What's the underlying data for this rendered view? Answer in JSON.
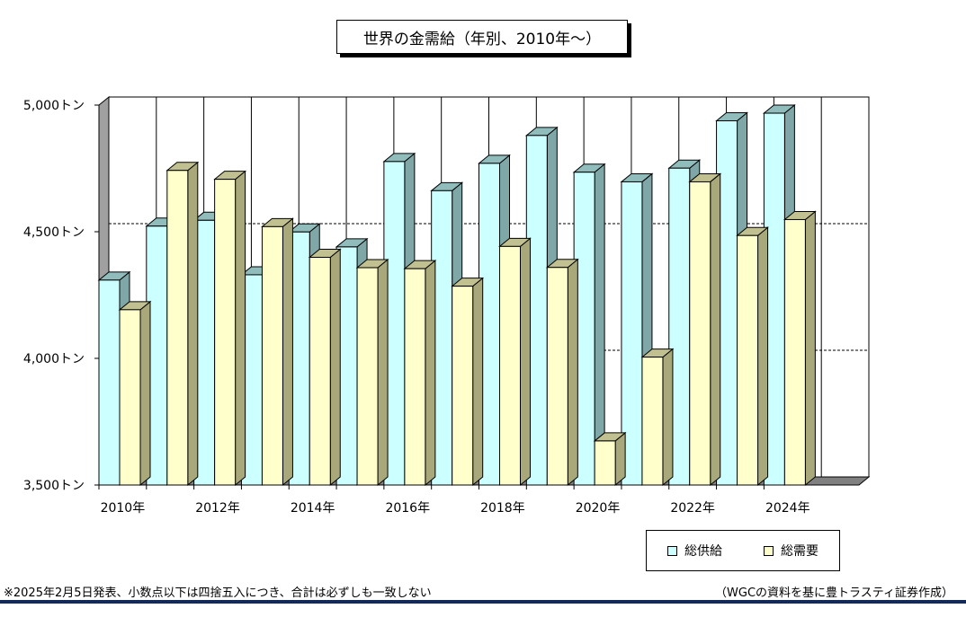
{
  "chart_data": {
    "type": "bar",
    "title": "世界の金需給（年別、2010年～）",
    "categories": [
      "2010年",
      "2011年",
      "2012年",
      "2013年",
      "2014年",
      "2015年",
      "2016年",
      "2017年",
      "2018年",
      "2019年",
      "2020年",
      "2021年",
      "2022年",
      "2023年",
      "2024年"
    ],
    "x_tick_labels": [
      "2010年",
      "",
      "2012年",
      "",
      "2014年",
      "",
      "2016年",
      "",
      "2018年",
      "",
      "2020年",
      "",
      "2022年",
      "",
      "2024年"
    ],
    "series": [
      {
        "name": "総供給",
        "color": "#ccffff",
        "values": [
          4309,
          4522,
          4545,
          4330,
          4499,
          4440,
          4777,
          4662,
          4770,
          4880,
          4735,
          4697,
          4751,
          4938,
          4968
        ]
      },
      {
        "name": "総需要",
        "color": "#ffffcc",
        "values": [
          4192,
          4742,
          4707,
          4520,
          4399,
          4358,
          4354,
          4285,
          4442,
          4359,
          3674,
          4005,
          4697,
          4485,
          4548
        ]
      }
    ],
    "ylim": [
      3500,
      5000
    ],
    "y_tick_labels": [
      "5,000トン",
      "4,500トン",
      "4,000トン",
      "3,500トン"
    ],
    "grid": true,
    "legend": "bottom-right"
  },
  "legend": {
    "supply_label": "総供給",
    "demand_label": "総需要"
  },
  "footnote": "※2025年2月5日発表、小数点以下は四捨五入につき、合計は必ずしも一致しない",
  "source": "（WGCの資料を基に豊トラスティ証券作成）"
}
